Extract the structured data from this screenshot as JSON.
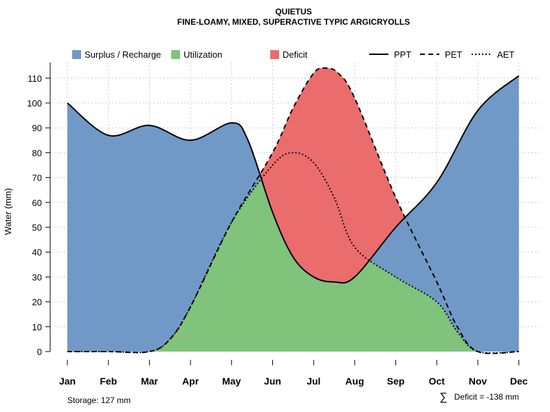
{
  "chart_data": {
    "type": "line",
    "title": "QUIETUS",
    "subtitle": "FINE-LOAMY, MIXED, SUPERACTIVE TYPIC ARGICRYOLLS",
    "ylabel": "Water (mm)",
    "ylim": [
      0,
      115
    ],
    "yticks": [
      0,
      10,
      20,
      30,
      40,
      50,
      60,
      70,
      80,
      90,
      100,
      110
    ],
    "categories": [
      "Jan",
      "Feb",
      "Mar",
      "Apr",
      "May",
      "Jun",
      "Jul",
      "Aug",
      "Sep",
      "Oct",
      "Nov",
      "Dec"
    ],
    "grid": true,
    "legend_position": "top",
    "series": [
      {
        "name": "PPT",
        "line": "solid",
        "points": [
          [
            1,
            100
          ],
          [
            2,
            87
          ],
          [
            3,
            91
          ],
          [
            4,
            85
          ],
          [
            5,
            92
          ],
          [
            5.4,
            85
          ],
          [
            6,
            56
          ],
          [
            6.5,
            38
          ],
          [
            7,
            30
          ],
          [
            7.5,
            28
          ],
          [
            8,
            30
          ],
          [
            9,
            50
          ],
          [
            10,
            68
          ],
          [
            11,
            97
          ],
          [
            12,
            111
          ]
        ]
      },
      {
        "name": "PET",
        "line": "dashed",
        "points": [
          [
            1,
            0
          ],
          [
            2,
            0
          ],
          [
            3,
            0
          ],
          [
            3.5,
            5
          ],
          [
            4,
            18
          ],
          [
            5,
            52
          ],
          [
            6,
            80
          ],
          [
            6.5,
            98
          ],
          [
            7,
            112
          ],
          [
            7.3,
            114
          ],
          [
            7.6,
            112
          ],
          [
            8,
            102
          ],
          [
            9,
            62
          ],
          [
            10,
            28
          ],
          [
            10.5,
            10
          ],
          [
            11,
            0
          ],
          [
            12,
            0
          ]
        ]
      },
      {
        "name": "AET",
        "line": "dotted",
        "points": [
          [
            1,
            0
          ],
          [
            2,
            0
          ],
          [
            3,
            0
          ],
          [
            3.5,
            5
          ],
          [
            4,
            18
          ],
          [
            5,
            52
          ],
          [
            6,
            75
          ],
          [
            6.5,
            80
          ],
          [
            7,
            76
          ],
          [
            7.5,
            62
          ],
          [
            8,
            42
          ],
          [
            9,
            30
          ],
          [
            10,
            20
          ],
          [
            10.5,
            8
          ],
          [
            11,
            0
          ],
          [
            12,
            0
          ]
        ]
      }
    ],
    "areas": [
      {
        "name": "Surplus / Recharge",
        "color": "#7199C7"
      },
      {
        "name": "Utilization",
        "color": "#80C37B"
      },
      {
        "name": "Deficit",
        "color": "#EA6C6D"
      }
    ],
    "annotations": {
      "storage": "Storage: 127 mm",
      "deficit": "Deficit = -138 mm",
      "deficit_symbol": "∑"
    }
  }
}
